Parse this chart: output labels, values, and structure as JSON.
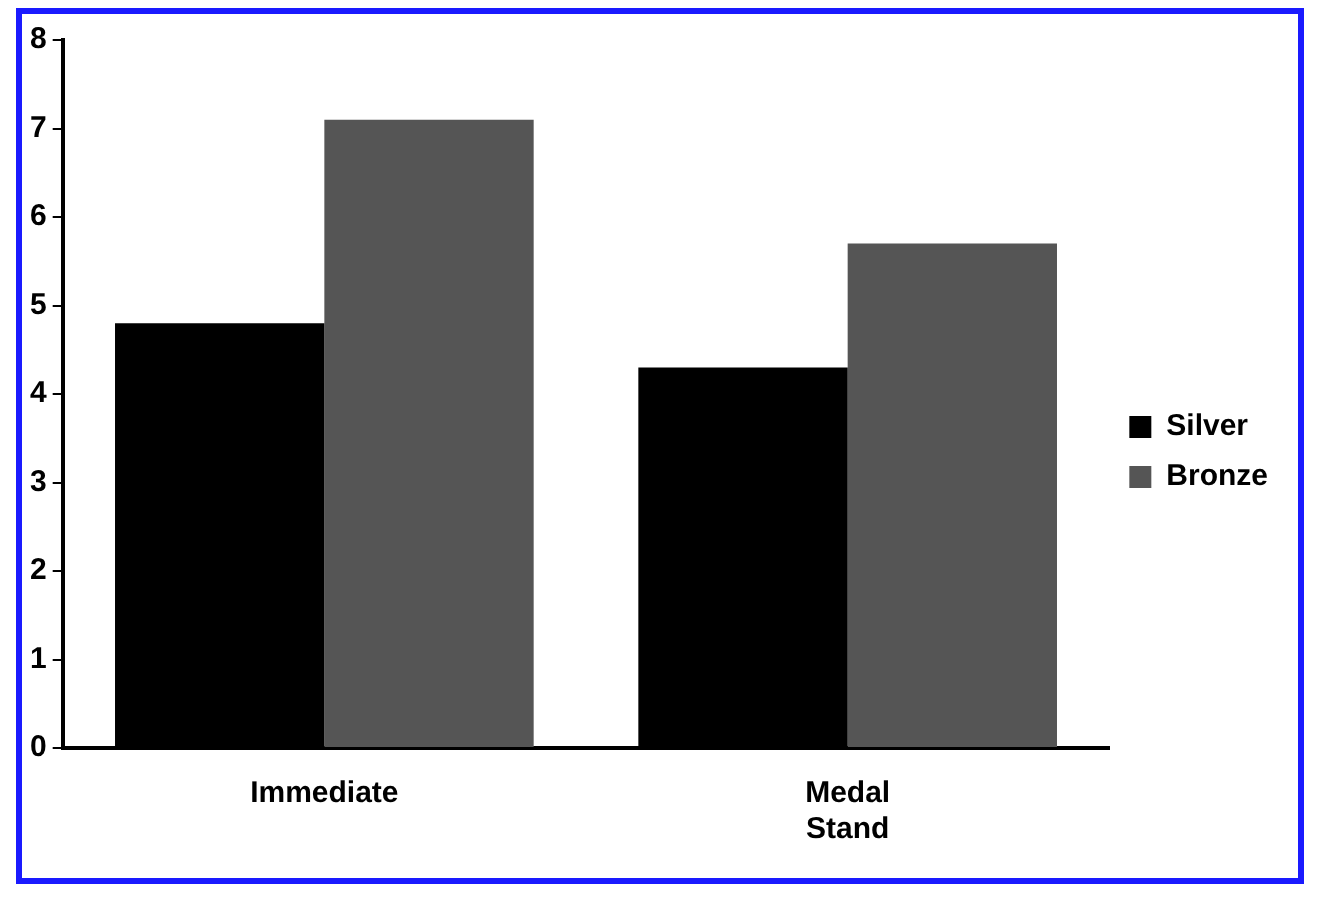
{
  "chart_data": {
    "type": "bar",
    "categories": [
      "Immediate",
      "Medal Stand"
    ],
    "series": [
      {
        "name": "Silver",
        "color": "#000000",
        "values": [
          4.8,
          4.3
        ]
      },
      {
        "name": "Bronze",
        "color": "#555555",
        "values": [
          7.1,
          5.7
        ]
      }
    ],
    "ylim": [
      0,
      8
    ],
    "yticks": [
      0,
      1,
      2,
      3,
      4,
      5,
      6,
      7,
      8
    ],
    "grid": false,
    "legend": "right"
  }
}
